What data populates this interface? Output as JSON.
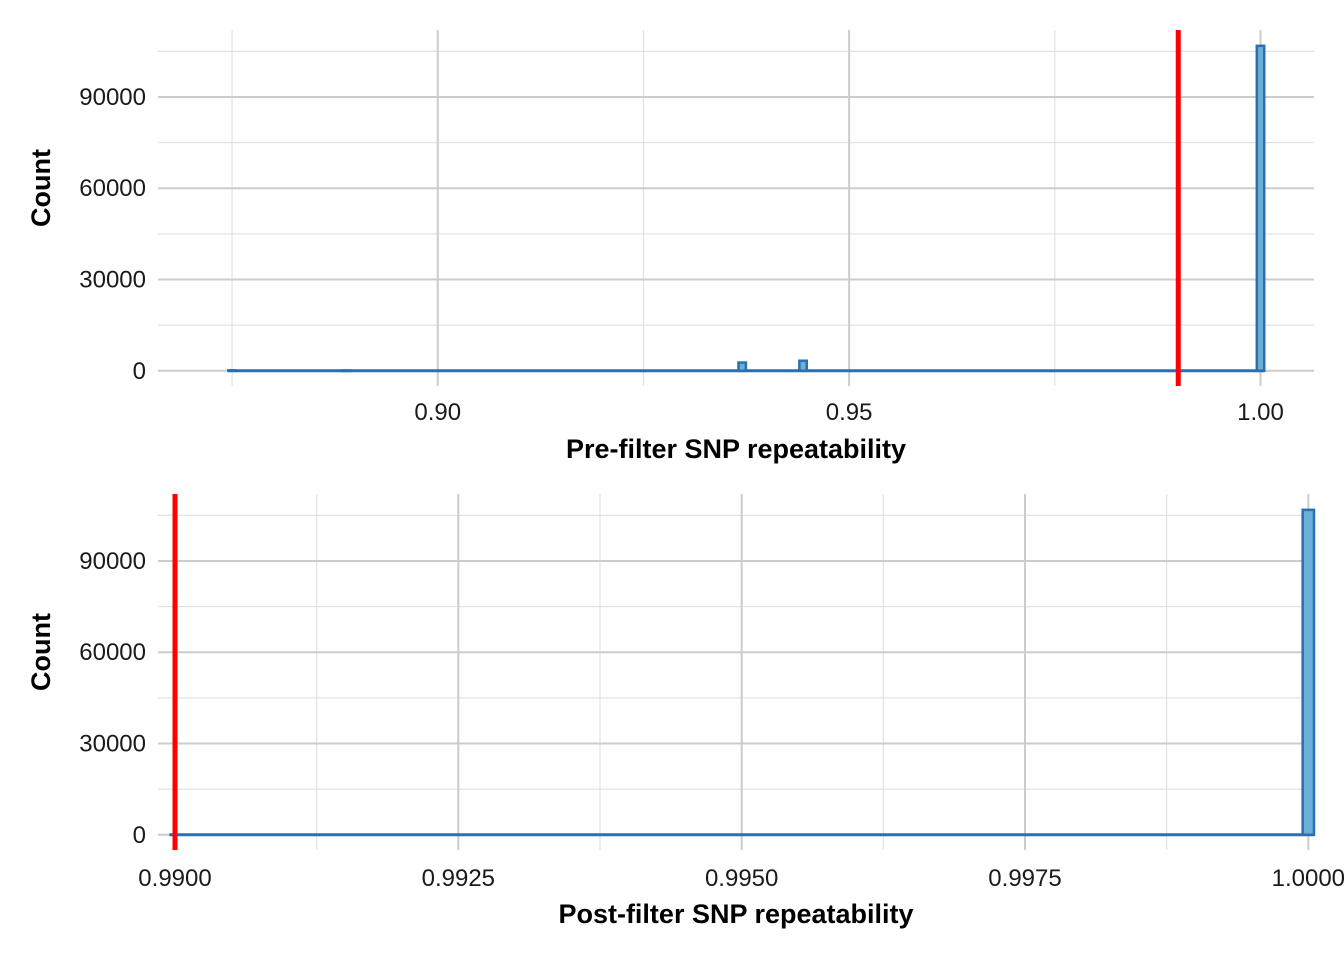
{
  "chart_data": [
    {
      "type": "histogram",
      "xlabel": "Pre-filter SNP repeatability",
      "ylabel": "Count",
      "xlim": [
        0.866,
        1.0065
      ],
      "ylim": [
        -5000,
        112000
      ],
      "x_ticks": [
        0.9,
        0.95,
        1.0
      ],
      "x_tick_labels": [
        "0.90",
        "0.95",
        "1.00"
      ],
      "x_minor_ticks": [
        0.875,
        0.925,
        0.975
      ],
      "y_ticks": [
        0,
        30000,
        60000,
        90000
      ],
      "y_tick_labels": [
        "0",
        "30000",
        "60000",
        "90000"
      ],
      "y_minor_ticks": [
        15000,
        45000,
        75000,
        105000
      ],
      "bin_width": 0.0009,
      "x_start": 0.8745,
      "x_end": 1.0005,
      "bins": [
        {
          "x": 0.875,
          "count": 150
        },
        {
          "x": 0.8889,
          "count": 100
        },
        {
          "x": 0.937,
          "count": 2700
        },
        {
          "x": 0.9444,
          "count": 3300
        },
        {
          "x": 1.0,
          "count": 106800
        }
      ],
      "threshold": 0.99,
      "threshold_color": "#ff0000",
      "bar_fill": "#6baed6",
      "bar_stroke": "#2b6fb0",
      "grid": true
    },
    {
      "type": "histogram",
      "xlabel": "Post-filter SNP repeatability",
      "ylabel": "Count",
      "xlim": [
        0.98985,
        1.00005
      ],
      "ylim": [
        -5000,
        112000
      ],
      "x_ticks": [
        0.99,
        0.9925,
        0.995,
        0.9975,
        1.0
      ],
      "x_tick_labels": [
        "0.9900",
        "0.9925",
        "0.9950",
        "0.9975",
        "1.0000"
      ],
      "x_minor_ticks": [
        0.99125,
        0.99375,
        0.99625,
        0.99875
      ],
      "y_ticks": [
        0,
        30000,
        60000,
        90000
      ],
      "y_tick_labels": [
        "0",
        "30000",
        "60000",
        "90000"
      ],
      "y_minor_ticks": [
        15000,
        45000,
        75000,
        105000
      ],
      "bin_width": 0.0001,
      "x_start": 0.98995,
      "x_end": 1.00005,
      "bins": [
        {
          "x": 1.0,
          "count": 106800
        }
      ],
      "threshold": 0.99,
      "threshold_color": "#ff0000",
      "bar_fill": "#6baed6",
      "bar_stroke": "#2b6fb0",
      "grid": true
    }
  ]
}
